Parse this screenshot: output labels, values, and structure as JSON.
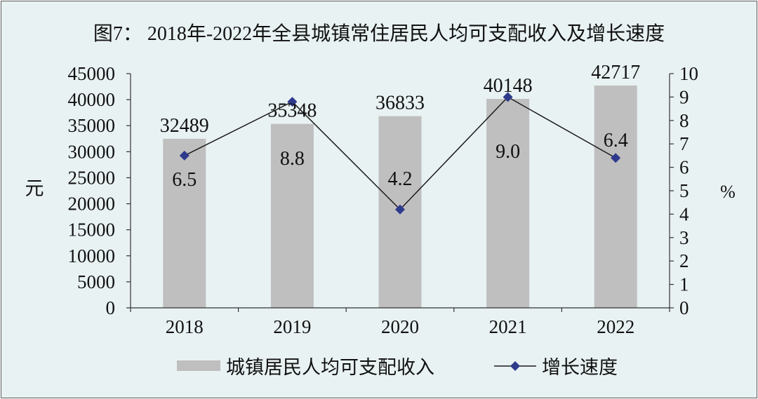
{
  "chart_data": {
    "type": "bar",
    "title": "图7：  2018年-2022年全县城镇常住居民人均可支配收入及增长速度",
    "categories": [
      "2018",
      "2019",
      "2020",
      "2021",
      "2022"
    ],
    "series": [
      {
        "name": "城镇居民人均可支配收入",
        "type": "bar",
        "axis": "left",
        "values": [
          32489,
          35348,
          36833,
          40148,
          42717
        ],
        "labels": [
          "32489",
          "35348",
          "36833",
          "40148",
          "42717"
        ],
        "color": "#bfbfbf"
      },
      {
        "name": "增长速度",
        "type": "line",
        "axis": "right",
        "values": [
          6.5,
          8.8,
          4.2,
          9.0,
          6.4
        ],
        "labels": [
          "6.5",
          "8.8",
          "4.2",
          "9.0",
          "6.4"
        ],
        "color": "#2e3a8c",
        "marker": "diamond"
      }
    ],
    "ylabel": "元",
    "y2label": "%",
    "ylim": [
      0,
      45000
    ],
    "y2lim": [
      0,
      10
    ],
    "yticks": [
      "0",
      "5000",
      "10000",
      "15000",
      "20000",
      "25000",
      "30000",
      "35000",
      "40000",
      "45000"
    ],
    "y2ticks": [
      "0",
      "1",
      "2",
      "3",
      "4",
      "5",
      "6",
      "7",
      "8",
      "9",
      "10"
    ],
    "grid": false,
    "legend": "bottom"
  }
}
